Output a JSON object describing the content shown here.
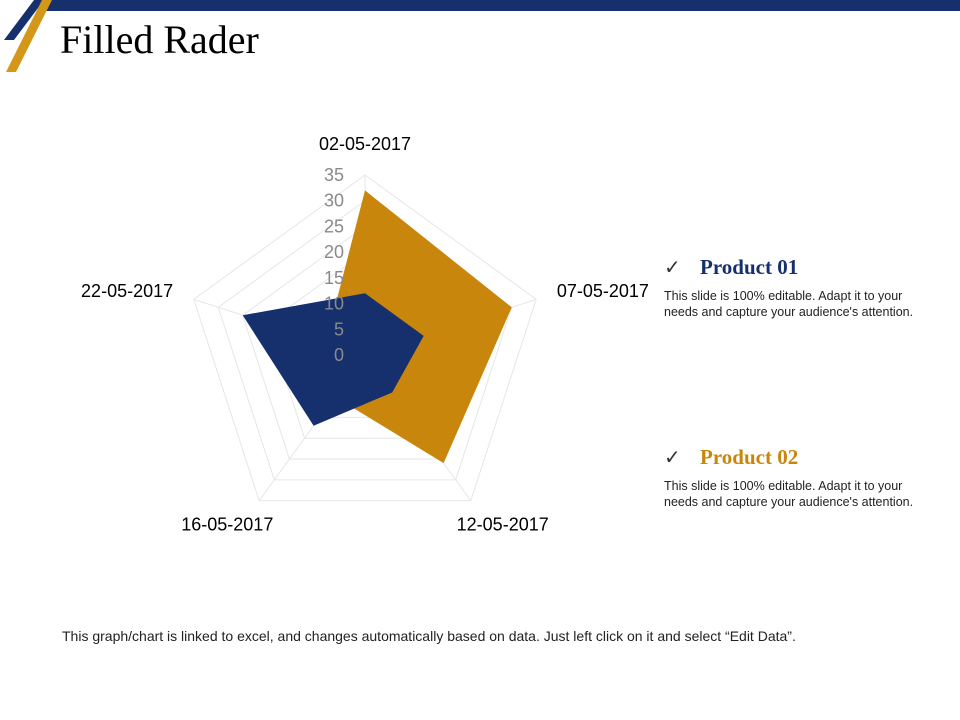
{
  "slide": {
    "title": "Filled Rader",
    "footer": "This graph/chart is linked to excel, and changes automatically  based on data. Just left click on it and select “Edit Data”."
  },
  "legend": [
    {
      "check": "✓",
      "title": "Product 01",
      "color": "#16306e",
      "desc": "This slide is 100% editable. Adapt it to your needs and capture your audience's attention."
    },
    {
      "check": "✓",
      "title": "Product 02",
      "color": "#c9860c",
      "desc": "This slide is 100% editable. Adapt it to your needs and capture your audience's attention."
    }
  ],
  "colors": {
    "product_01": "#16306e",
    "product_02": "#c9860c",
    "accent_bar": "#16306e",
    "accent_gold": "#d4971a",
    "grid": "#e6e6e6"
  },
  "chart_data": {
    "type": "radar",
    "title": "",
    "categories": [
      "02-05-2017",
      "07-05-2017",
      "12-05-2017",
      "16-05-2017",
      "22-05-2017"
    ],
    "ticks": [
      "0",
      "5",
      "10",
      "15",
      "20",
      "25",
      "30",
      "35"
    ],
    "rmax": 35,
    "tick_step": 5,
    "grid": true,
    "series": [
      {
        "name": "",
        "values": [
          32,
          30,
          26,
          10,
          8
        ],
        "color": "#c9860c"
      },
      {
        "name": "",
        "values": [
          12,
          12,
          9,
          17,
          25
        ],
        "color": "#16306e"
      }
    ]
  }
}
